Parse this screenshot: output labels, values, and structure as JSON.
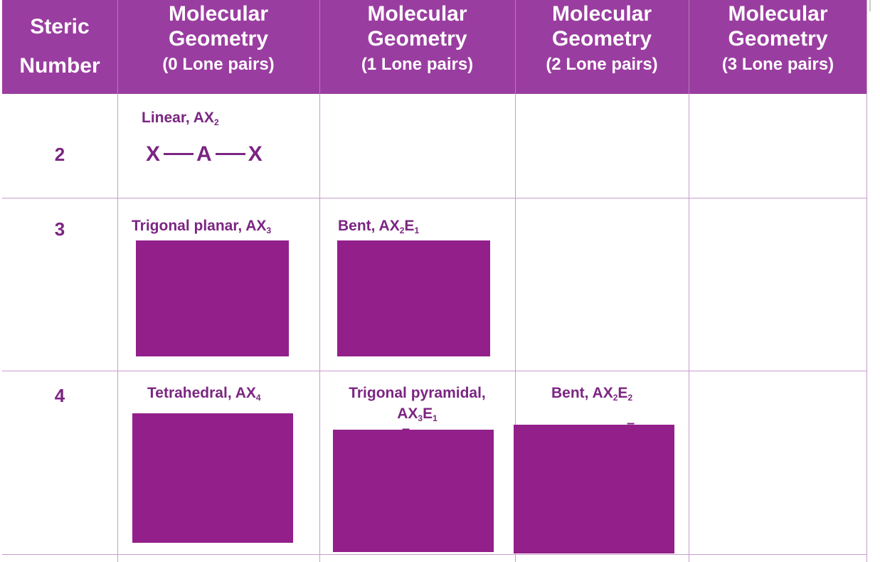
{
  "header": {
    "steric_line1": "Steric",
    "steric_line2": "Number",
    "columns": [
      {
        "line1": "Molecular",
        "line2": "Geometry",
        "line3": "(0 Lone pairs)"
      },
      {
        "line1": "Molecular",
        "line2": "Geometry",
        "line3": "(1 Lone pairs)"
      },
      {
        "line1": "Molecular",
        "line2": "Geometry",
        "line3": "(2 Lone pairs)"
      },
      {
        "line1": "Molecular",
        "line2": "Geometry",
        "line3": "(3 Lone pairs)"
      }
    ]
  },
  "rows": [
    {
      "steric_number": "2",
      "cells": [
        {
          "name": "Linear, AX",
          "sub": "2",
          "formula": {
            "left": "X",
            "center": "A",
            "right": "X"
          }
        }
      ]
    },
    {
      "steric_number": "3",
      "cells": [
        {
          "name": "Trigonal planar, AX",
          "sub": "3"
        },
        {
          "name": "Bent, AX",
          "sub1": "2",
          "mid": "E",
          "sub2": "1"
        }
      ]
    },
    {
      "steric_number": "4",
      "cells": [
        {
          "name": "Tetrahedral, AX",
          "sub": "4"
        },
        {
          "name_line1": "Trigonal pyramidal,",
          "name_line2": "AX",
          "sub1": "3",
          "mid": "E",
          "sub2": "1"
        },
        {
          "name": "Bent, AX",
          "sub1": "2",
          "mid": "E",
          "sub2": "2"
        }
      ]
    }
  ],
  "colors": {
    "header_bg": "#9a3da0",
    "header_text": "#ffffff",
    "body_text": "#7b2582",
    "grid": "#c99ccc",
    "image_placeholder": "#931f8a"
  }
}
